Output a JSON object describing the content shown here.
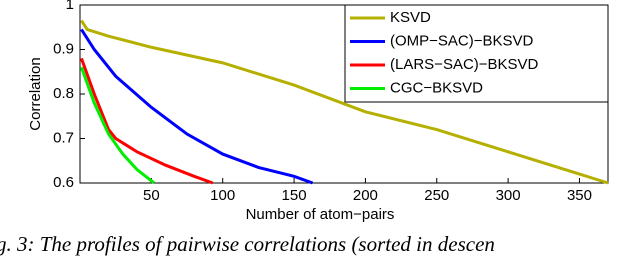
{
  "chart_data": {
    "type": "line",
    "xlabel": "Number of atom−pairs",
    "ylabel": "Correlation",
    "xlim": [
      0,
      370
    ],
    "ylim": [
      0.6,
      1
    ],
    "xticks": [
      50,
      100,
      150,
      200,
      250,
      300,
      350
    ],
    "yticks": [
      0.6,
      0.7,
      0.8,
      0.9,
      1
    ],
    "legend": "top-right",
    "series": [
      {
        "name": "KSVD",
        "color": "#b5b000",
        "x": [
          1,
          5,
          20,
          50,
          100,
          150,
          200,
          250,
          300,
          350,
          370
        ],
        "values": [
          0.965,
          0.945,
          0.93,
          0.905,
          0.87,
          0.82,
          0.76,
          0.72,
          0.67,
          0.62,
          0.6
        ]
      },
      {
        "name": "(OMP−SAC)−BKSVD",
        "color": "#0000ff",
        "x": [
          1,
          10,
          25,
          50,
          75,
          100,
          125,
          150,
          163
        ],
        "values": [
          0.945,
          0.9,
          0.84,
          0.77,
          0.71,
          0.665,
          0.635,
          0.615,
          0.6
        ]
      },
      {
        "name": "(LARS−SAC)−BKSVD",
        "color": "#ff0000",
        "x": [
          1,
          10,
          20,
          25,
          40,
          60,
          80,
          93
        ],
        "values": [
          0.88,
          0.8,
          0.72,
          0.7,
          0.67,
          0.64,
          0.615,
          0.6
        ]
      },
      {
        "name": "CGC−BKSVD",
        "color": "#00ee00",
        "x": [
          1,
          10,
          20,
          30,
          40,
          50,
          52
        ],
        "values": [
          0.86,
          0.78,
          0.71,
          0.665,
          0.63,
          0.605,
          0.6
        ]
      }
    ]
  },
  "caption": "g. 3: The profiles of pairwise correlations (sorted in descen"
}
